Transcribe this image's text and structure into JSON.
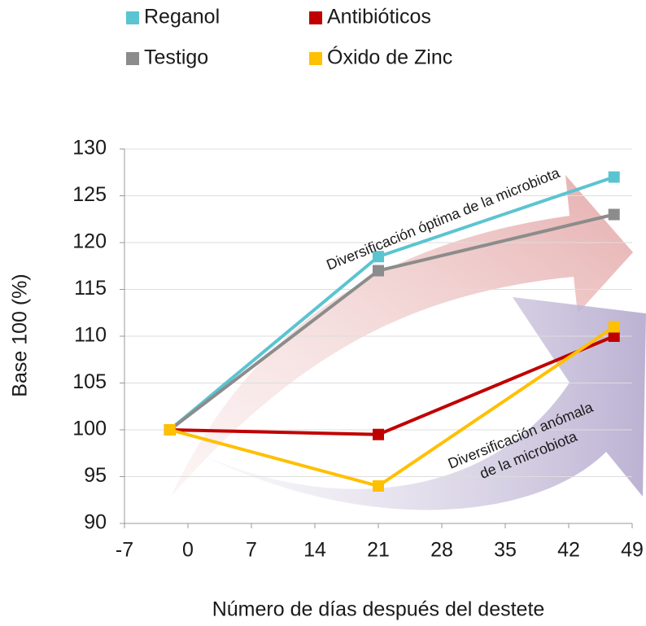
{
  "chart_data": {
    "type": "line",
    "x_label": "Número de días después del destete",
    "y_label": "Base 100 (%)",
    "x": [
      -2,
      21,
      47
    ],
    "series": [
      {
        "name": "Reganol",
        "color": "#5bc4d1",
        "values": [
          100,
          118.5,
          127
        ]
      },
      {
        "name": "Antibióticos",
        "color": "#c00000",
        "values": [
          100,
          99.5,
          110
        ]
      },
      {
        "name": "Testigo",
        "color": "#8c8c8c",
        "values": [
          100,
          117,
          123
        ]
      },
      {
        "name": "Óxido de Zinc",
        "color": "#ffc000",
        "values": [
          100,
          94,
          111
        ]
      }
    ],
    "xlim": [
      -7,
      49
    ],
    "xticks": [
      -7,
      0,
      7,
      14,
      21,
      28,
      35,
      42,
      49
    ],
    "ylim": [
      90,
      130
    ],
    "yticks": [
      90,
      95,
      100,
      105,
      110,
      115,
      120,
      125,
      130
    ],
    "grid": true,
    "legend": "top",
    "annotations": [
      {
        "lines": [
          "Diversificación óptima de la microbiota"
        ]
      },
      {
        "lines": [
          "Diversificación anómala",
          "de la microbiota"
        ]
      }
    ]
  }
}
